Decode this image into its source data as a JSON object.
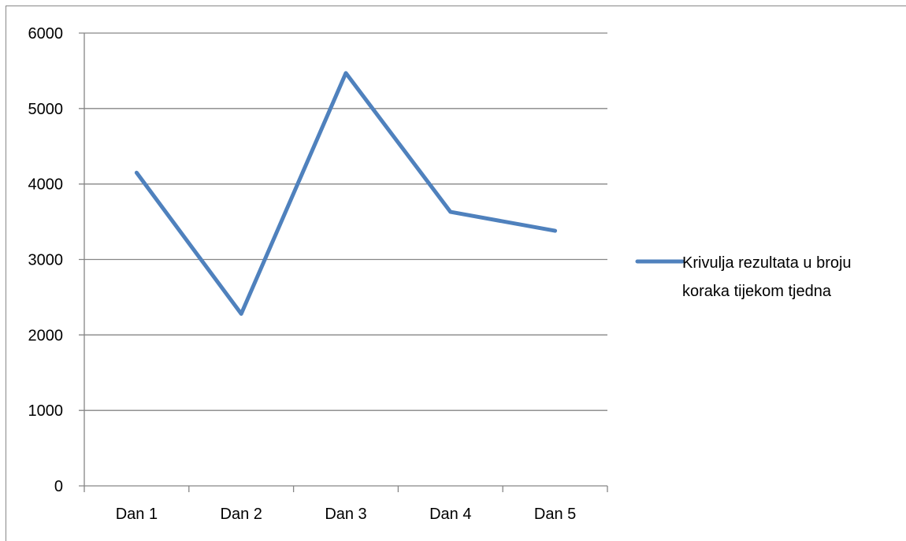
{
  "chart_data": {
    "type": "line",
    "categories": [
      "Dan 1",
      "Dan 2",
      "Dan 3",
      "Dan 4",
      "Dan 5"
    ],
    "series": [
      {
        "name": "Krivulja rezultata u broju koraka tijekom tjedna",
        "values": [
          4150,
          2280,
          5470,
          3630,
          3380
        ],
        "color": "#4F81BD"
      }
    ],
    "y_ticks": [
      "0",
      "1000",
      "2000",
      "3000",
      "4000",
      "5000",
      "6000"
    ],
    "ylim": [
      0,
      6000
    ],
    "title": "",
    "xlabel": "",
    "ylabel": "",
    "grid": true,
    "legend_position": "right",
    "legend_lines": [
      "Krivulja rezultata u broju",
      "koraka tijekom tjedna"
    ]
  }
}
